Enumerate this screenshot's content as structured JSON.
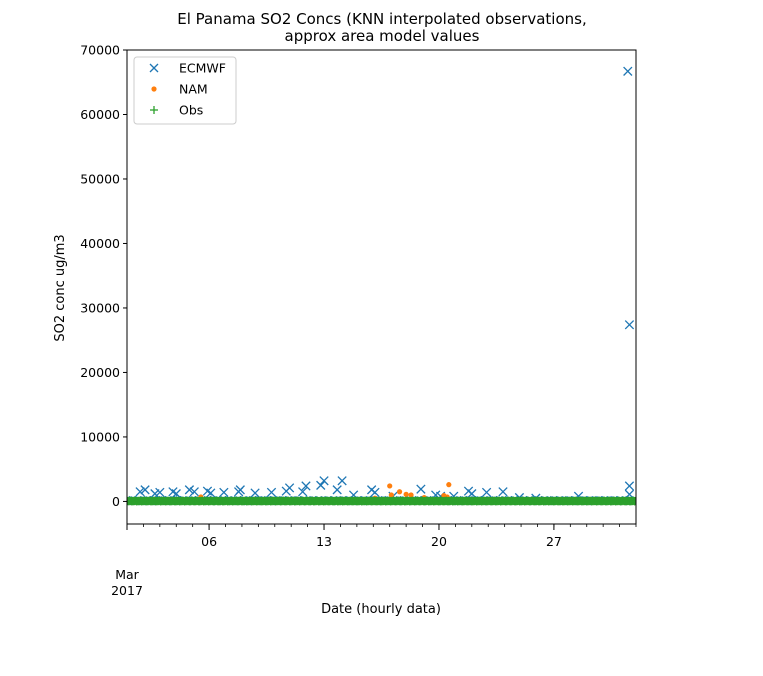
{
  "chart_data": {
    "type": "scatter",
    "title": "El Panama SO2 Concs (KNN interpolated observations,",
    "subtitle": "approx area model values",
    "xlabel": "Date (hourly data)",
    "ylabel": "SO2 conc ug/m3",
    "x_unit": "day of March 2017",
    "xlim": [
      1,
      32
    ],
    "ylim": [
      -3500,
      70000
    ],
    "x_ticks": [
      {
        "value": 6,
        "label": "06"
      },
      {
        "value": 13,
        "label": "13"
      },
      {
        "value": 20,
        "label": "20"
      },
      {
        "value": 27,
        "label": "27"
      }
    ],
    "x_secondary_label": [
      "Mar",
      "2017"
    ],
    "y_ticks": [
      0,
      10000,
      20000,
      30000,
      40000,
      50000,
      60000,
      70000
    ],
    "y_tick_labels": [
      "0",
      "10000",
      "20000",
      "30000",
      "40000",
      "50000",
      "60000",
      "70000"
    ],
    "legend": {
      "position": "top-left"
    },
    "series": [
      {
        "name": "ECMWF",
        "marker": "x",
        "color": "#1f77b4",
        "points": [
          [
            1.8,
            1500
          ],
          [
            2.1,
            1800
          ],
          [
            2.7,
            1200
          ],
          [
            3.0,
            1400
          ],
          [
            3.8,
            1500
          ],
          [
            4.0,
            1200
          ],
          [
            4.8,
            1800
          ],
          [
            5.1,
            1500
          ],
          [
            5.9,
            1600
          ],
          [
            6.1,
            1300
          ],
          [
            6.9,
            1400
          ],
          [
            7.8,
            1500
          ],
          [
            7.9,
            1800
          ],
          [
            8.8,
            1300
          ],
          [
            9.8,
            1400
          ],
          [
            10.7,
            1600
          ],
          [
            10.9,
            2100
          ],
          [
            11.7,
            1500
          ],
          [
            11.9,
            2400
          ],
          [
            12.8,
            2500
          ],
          [
            13.0,
            3200
          ],
          [
            13.8,
            1800
          ],
          [
            14.1,
            3200
          ],
          [
            14.8,
            1000
          ],
          [
            15.9,
            1800
          ],
          [
            16.1,
            1400
          ],
          [
            17.2,
            800
          ],
          [
            18.9,
            1900
          ],
          [
            19.8,
            1000
          ],
          [
            20.1,
            800
          ],
          [
            20.9,
            800
          ],
          [
            21.8,
            1600
          ],
          [
            22.0,
            1200
          ],
          [
            22.9,
            1400
          ],
          [
            23.9,
            1500
          ],
          [
            24.9,
            600
          ],
          [
            25.9,
            500
          ],
          [
            28.5,
            800
          ],
          [
            31.5,
            66700
          ],
          [
            31.6,
            27400
          ],
          [
            31.6,
            2400
          ],
          [
            31.6,
            1100
          ]
        ]
      },
      {
        "name": "NAM",
        "marker": "o",
        "color": "#ff7f0e",
        "points": [
          [
            5.5,
            700
          ],
          [
            16.1,
            500
          ],
          [
            17.0,
            2400
          ],
          [
            17.1,
            1000
          ],
          [
            17.6,
            1500
          ],
          [
            18.0,
            1100
          ],
          [
            18.3,
            1000
          ],
          [
            19.1,
            600
          ],
          [
            20.3,
            900
          ],
          [
            20.5,
            700
          ],
          [
            20.6,
            2600
          ]
        ]
      },
      {
        "name": "Obs",
        "marker": "+",
        "color": "#2ca02c",
        "values_note": "",
        "points": []
      }
    ]
  }
}
